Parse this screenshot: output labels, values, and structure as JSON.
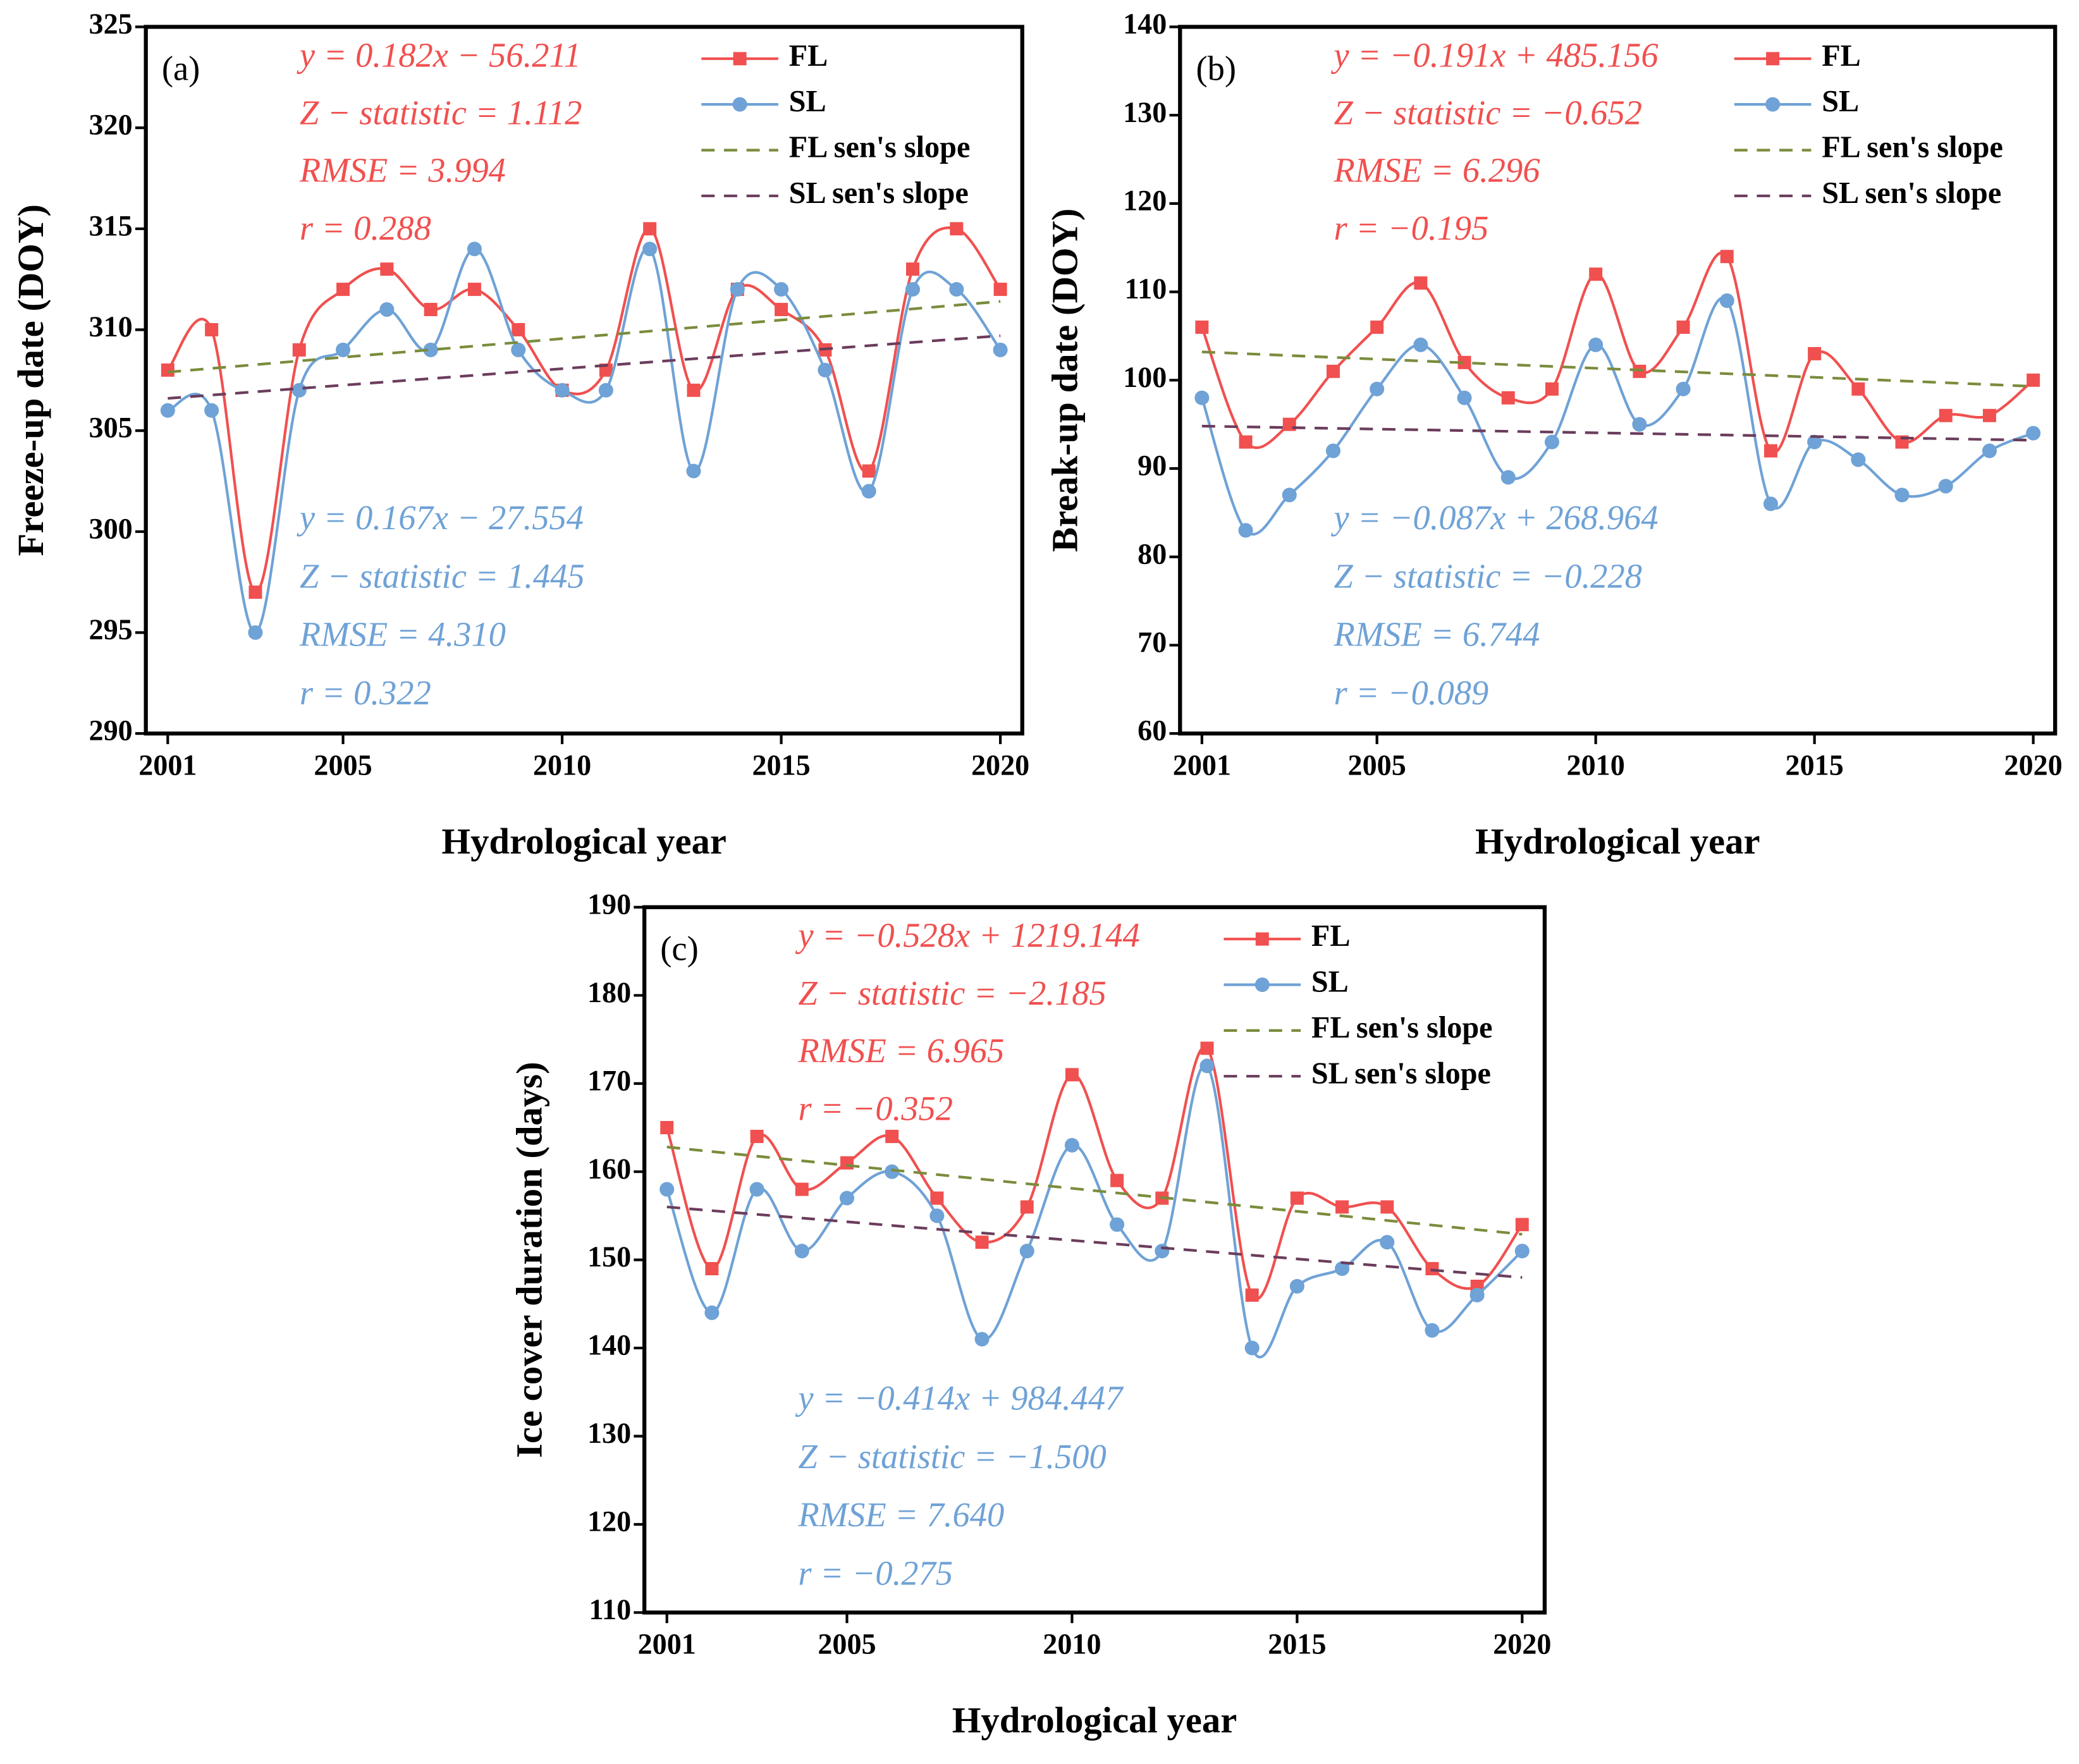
{
  "chart_data": [
    {
      "type": "line",
      "panel_label": "(a)",
      "x_label": "Hydrological year",
      "y_label": "Freeze-up date (DOY)",
      "x": [
        2001,
        2002,
        2003,
        2004,
        2005,
        2006,
        2007,
        2008,
        2009,
        2010,
        2011,
        2012,
        2013,
        2014,
        2015,
        2016,
        2017,
        2018,
        2019,
        2020
      ],
      "series": [
        {
          "name": "FL",
          "color": "#f0504f",
          "marker": "square",
          "smooth": true,
          "values": [
            308,
            310,
            297,
            309,
            312,
            313,
            311,
            312,
            310,
            307,
            308,
            315,
            307,
            312,
            311,
            309,
            303,
            313,
            315,
            312
          ]
        },
        {
          "name": "SL",
          "color": "#6fa2d6",
          "marker": "circle",
          "smooth": true,
          "values": [
            306,
            306,
            295,
            307,
            309,
            311,
            309,
            314,
            309,
            307,
            307,
            314,
            303,
            312,
            312,
            308,
            302,
            312,
            312,
            309
          ]
        },
        {
          "name": "FL sen's slope",
          "color": "#7a8c3c",
          "dashed": true,
          "x": [
            2001,
            2020
          ],
          "values": [
            307.9,
            311.4
          ]
        },
        {
          "name": "SL sen's slope",
          "color": "#6b3d5c",
          "dashed": true,
          "x": [
            2001,
            2020
          ],
          "values": [
            306.6,
            309.7
          ]
        }
      ],
      "annotations": [
        {
          "text": "y = 0.182x − 56.211",
          "color": "#f0504f"
        },
        {
          "text": "Z − statistic = 1.112",
          "color": "#f0504f"
        },
        {
          "text": "RMSE = 3.994",
          "color": "#f0504f"
        },
        {
          "text": "r = 0.288",
          "color": "#f0504f"
        },
        {
          "text": "y = 0.167x − 27.554",
          "color": "#6fa2d6"
        },
        {
          "text": "Z − statistic = 1.445",
          "color": "#6fa2d6"
        },
        {
          "text": "RMSE = 4.310",
          "color": "#6fa2d6"
        },
        {
          "text": "r = 0.322",
          "color": "#6fa2d6"
        }
      ],
      "xlim": [
        2000.5,
        2020.5
      ],
      "xticks": [
        2001,
        2005,
        2010,
        2015,
        2020
      ],
      "ylim": [
        290,
        325
      ],
      "yticks": [
        290,
        295,
        300,
        305,
        310,
        315,
        320,
        325
      ],
      "legend": "upper right"
    },
    {
      "type": "line",
      "panel_label": "(b)",
      "x_label": "Hydrological year",
      "y_label": "Break-up date (DOY)",
      "x": [
        2001,
        2002,
        2003,
        2004,
        2005,
        2006,
        2007,
        2008,
        2009,
        2010,
        2011,
        2012,
        2013,
        2014,
        2015,
        2016,
        2017,
        2018,
        2019,
        2020
      ],
      "series": [
        {
          "name": "FL",
          "color": "#f0504f",
          "marker": "square",
          "smooth": true,
          "values": [
            106,
            93,
            95,
            101,
            106,
            111,
            102,
            98,
            99,
            112,
            101,
            106,
            114,
            92,
            103,
            99,
            93,
            96,
            96,
            100
          ]
        },
        {
          "name": "SL",
          "color": "#6fa2d6",
          "marker": "circle",
          "smooth": true,
          "values": [
            98,
            83,
            87,
            92,
            99,
            104,
            98,
            89,
            93,
            104,
            95,
            99,
            109,
            86,
            93,
            91,
            87,
            88,
            92,
            94
          ]
        },
        {
          "name": "FL sen's slope",
          "color": "#7a8c3c",
          "dashed": true,
          "x": [
            2001,
            2020
          ],
          "values": [
            103.2,
            99.3
          ]
        },
        {
          "name": "SL sen's slope",
          "color": "#6b3d5c",
          "dashed": true,
          "x": [
            2001,
            2020
          ],
          "values": [
            94.8,
            93.2
          ]
        }
      ],
      "annotations": [
        {
          "text": "y = −0.191x + 485.156",
          "color": "#f0504f"
        },
        {
          "text": "Z − statistic = −0.652",
          "color": "#f0504f"
        },
        {
          "text": "RMSE = 6.296",
          "color": "#f0504f"
        },
        {
          "text": "r = −0.195",
          "color": "#f0504f"
        },
        {
          "text": "y = −0.087x + 268.964",
          "color": "#6fa2d6"
        },
        {
          "text": "Z − statistic = −0.228",
          "color": "#6fa2d6"
        },
        {
          "text": "RMSE = 6.744",
          "color": "#6fa2d6"
        },
        {
          "text": "r = −0.089",
          "color": "#6fa2d6"
        }
      ],
      "xlim": [
        2000.5,
        2020.5
      ],
      "xticks": [
        2001,
        2005,
        2010,
        2015,
        2020
      ],
      "ylim": [
        60,
        140
      ],
      "yticks": [
        60,
        70,
        80,
        90,
        100,
        110,
        120,
        130,
        140
      ],
      "legend": "upper right"
    },
    {
      "type": "line",
      "panel_label": "(c)",
      "x_label": "Hydrological year",
      "y_label": "Ice cover duration (days)",
      "x": [
        2001,
        2002,
        2003,
        2004,
        2005,
        2006,
        2007,
        2008,
        2009,
        2010,
        2011,
        2012,
        2013,
        2014,
        2015,
        2016,
        2017,
        2018,
        2019,
        2020
      ],
      "series": [
        {
          "name": "FL",
          "color": "#f0504f",
          "marker": "square",
          "smooth": true,
          "values": [
            165,
            149,
            164,
            158,
            161,
            164,
            157,
            152,
            156,
            171,
            159,
            157,
            174,
            146,
            157,
            156,
            156,
            149,
            147,
            154
          ]
        },
        {
          "name": "SL",
          "color": "#6fa2d6",
          "marker": "circle",
          "smooth": true,
          "values": [
            158,
            144,
            158,
            151,
            157,
            160,
            155,
            141,
            151,
            163,
            154,
            151,
            172,
            140,
            147,
            149,
            152,
            142,
            146,
            151
          ]
        },
        {
          "name": "FL sen's slope",
          "color": "#7a8c3c",
          "dashed": true,
          "x": [
            2001,
            2020
          ],
          "values": [
            162.8,
            152.9
          ]
        },
        {
          "name": "SL sen's slope",
          "color": "#6b3d5c",
          "dashed": true,
          "x": [
            2001,
            2020
          ],
          "values": [
            156,
            148
          ]
        }
      ],
      "annotations": [
        {
          "text": "y = −0.528x + 1219.144",
          "color": "#f0504f"
        },
        {
          "text": "Z − statistic = −2.185",
          "color": "#f0504f"
        },
        {
          "text": "RMSE = 6.965",
          "color": "#f0504f"
        },
        {
          "text": "r = −0.352",
          "color": "#f0504f"
        },
        {
          "text": "y = −0.414x + 984.447",
          "color": "#6fa2d6"
        },
        {
          "text": "Z − statistic = −1.500",
          "color": "#6fa2d6"
        },
        {
          "text": "RMSE = 7.640",
          "color": "#6fa2d6"
        },
        {
          "text": "r = −0.275",
          "color": "#6fa2d6"
        }
      ],
      "xlim": [
        2000.5,
        2020.5
      ],
      "xticks": [
        2001,
        2005,
        2010,
        2015,
        2020
      ],
      "ylim": [
        110,
        190
      ],
      "yticks": [
        110,
        120,
        130,
        140,
        150,
        160,
        170,
        180,
        190
      ],
      "legend": "upper right"
    }
  ]
}
